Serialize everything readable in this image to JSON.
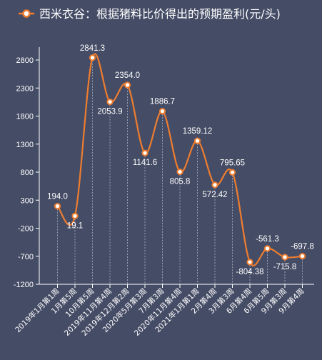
{
  "chart_data": {
    "type": "line",
    "legend": {
      "position": "top-left",
      "items": [
        {
          "name": "西米衣谷：根据猪料比价得出的预期盈利(元/头)",
          "color": "#ee7d30"
        }
      ]
    },
    "series": [
      {
        "name": "西米衣谷：根据猪料比价得出的预期盈利(元/头)",
        "color": "#ee7d30",
        "smooth": true,
        "marker": "hollow-circle",
        "values": [
          194.0,
          19.1,
          2841.3,
          2053.9,
          2354.0,
          1141.6,
          1886.7,
          805.8,
          1359.12,
          572.42,
          795.65,
          -804.38,
          -561.3,
          -715.8,
          -697.8
        ],
        "labels": [
          "194.0",
          "19.1",
          "2841.3",
          "2053.9",
          "2354.0",
          "1141.6",
          "1886.7",
          "805.8",
          "1359.12",
          "572.42",
          "795.65",
          "-804.38",
          "-561.3",
          "-715.8",
          "-697.8"
        ]
      }
    ],
    "categories": [
      "2019年1月第1周",
      "1月第5周",
      "10月第5周",
      "2019年11月第4周",
      "2019年12月第2周",
      "2020年5月第3周",
      "7月第3周",
      "2020年11月第4周",
      "2021年1月第1周",
      "2月第4周",
      "3月第3周",
      "6月第4周",
      "6月第5周",
      "9月第3周",
      "9月第4周"
    ],
    "y_axis": {
      "ticks": [
        2800,
        2300,
        1800,
        1300,
        800,
        300,
        -200,
        -700,
        -1200
      ],
      "tick_labels": [
        "2800",
        "2300",
        "1800",
        "1300",
        "800",
        "300",
        "-200",
        "-700",
        "-1200"
      ],
      "range": [
        -1200,
        3150
      ]
    },
    "grid": false,
    "drop_lines": "dotted",
    "title": "",
    "xlabel": "",
    "ylabel": ""
  },
  "colors": {
    "background": "#454c65",
    "axis": "#ffffff",
    "drop_line": "#9aa0b3"
  }
}
